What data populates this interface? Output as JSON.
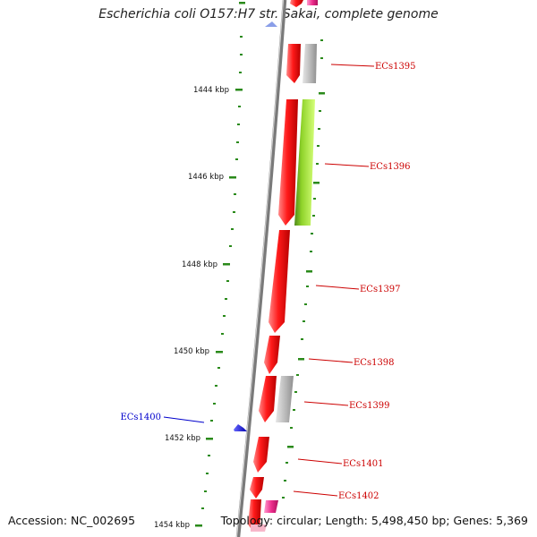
{
  "title": "Escherichia coli O157:H7 str. Sakai, complete genome",
  "footer": {
    "accession": "Accession: NC_002695",
    "summary": "Topology: circular; Length: 5,498,450 bp; Genes: 5,369"
  },
  "scale_ticks": [
    "1444 kbp",
    "1446 kbp",
    "1448 kbp",
    "1450 kbp",
    "1452 kbp",
    "1454 kbp"
  ],
  "gene_labels": [
    {
      "id": "forward-1395",
      "text": "ECs1395",
      "color": "#cc0000"
    },
    {
      "id": "forward-1396",
      "text": "ECs1396",
      "color": "#cc0000"
    },
    {
      "id": "forward-1397",
      "text": "ECs1397",
      "color": "#cc0000"
    },
    {
      "id": "forward-1398",
      "text": "ECs1398",
      "color": "#cc0000"
    },
    {
      "id": "forward-1399",
      "text": "ECs1399",
      "color": "#cc0000"
    },
    {
      "id": "reverse-1400",
      "text": "ECs1400",
      "color": "#0000cc"
    },
    {
      "id": "forward-1401",
      "text": "ECs1401",
      "color": "#cc0000"
    },
    {
      "id": "forward-1402",
      "text": "ECs1402",
      "color": "#cc0000"
    }
  ],
  "colors": {
    "backbone": "#7a7a7a",
    "cds_forward": "#ee0000",
    "cds_reverse": "#1a1aee",
    "tick": "#2a8a1a",
    "gray_feature": "#b4b4b4",
    "green_feature": "#8ad12a",
    "pink_feature": "#e8338a"
  }
}
